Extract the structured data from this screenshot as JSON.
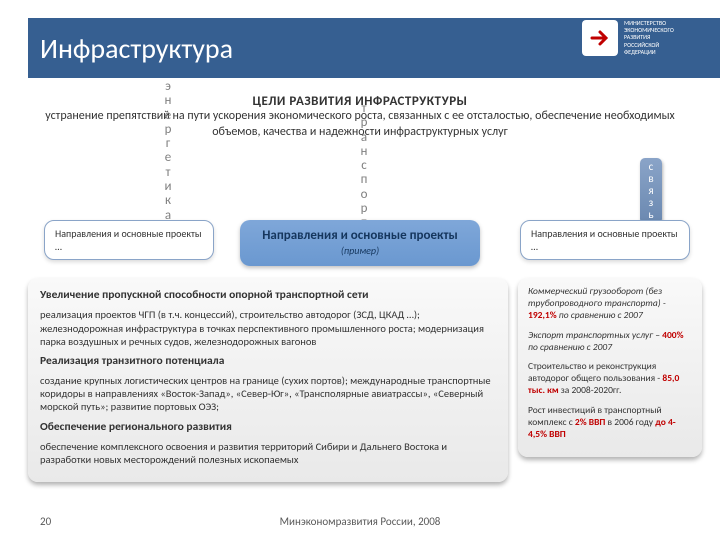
{
  "header": {
    "title": "Инфраструктура",
    "ministry_line1": "МИНИСТЕРСТВО",
    "ministry_line2": "ЭКОНОМИЧЕСКОГО",
    "ministry_line3": "РАЗВИТИЯ",
    "ministry_line4": "РОССИЙСКОЙ",
    "ministry_line5": "ФЕДЕРАЦИИ"
  },
  "goals": {
    "title": "ЦЕЛИ РАЗВИТИЯ ИНФРАСТРУКТУРЫ",
    "body": "устранение препятствий на пути ускорения экономического роста, связанных с ее отсталостью, обеспечение необходимых объемов, качества и надежности инфраструктурных услуг"
  },
  "pillars": {
    "energy": "энергетика",
    "transport": "транспорт",
    "telecom": "связь"
  },
  "callouts": {
    "left": "Направления и основные проекты …",
    "right": "Направления и основные проекты …",
    "center_main": "Направления и основные ",
    "center_sub": "проекты ",
    "center_note": "(пример)"
  },
  "main": {
    "h1": "Увеличение пропускной способности опорной транспортной сети",
    "p1": "реализация проектов ЧГП (в т.ч. концессий), строительство автодорог (ЗСД, ЦКАД …); железнодорожная инфраструктура в точках перспективного промышленного роста; модернизация парка воздушных и речных судов, железнодорожных вагонов",
    "h2": "Реализация транзитного потенциала",
    "p2": "создание крупных логистических центров на границе (сухих портов); международные транспортные коридоры в направлениях «Восток-Запад», «Север-Юг», «Трансполярные авиатрассы», «Северный морской путь»; развитие портовых ОЭЗ;",
    "h3": "Обеспечение регионального развития",
    "p3": "обеспечение комплексного освоения и развития территорий Сибири и Дальнего Востока и разработки новых месторождений полезных ископаемых"
  },
  "stats": {
    "s1_a": "Коммерческий грузооборот (без трубопроводного транспорта) - ",
    "s1_b": "192,1%",
    "s1_c": " по сравнению с 2007",
    "s2_a": "Экспорт транспортных услуг – ",
    "s2_b": "400%",
    "s2_c": " по сравнению с 2007",
    "s3_a": "Строительство и реконструкция автодорог общего пользования - ",
    "s3_b": "85,0 тыс. км",
    "s3_c": " за 2008-2020гг.",
    "s4_a": "Рост инвестиций в транспортный комплекс с ",
    "s4_b": "2% ВВП",
    "s4_c": " в 2006 году ",
    "s4_d": "до 4-4,5% ВВП"
  },
  "footer": {
    "page": "20",
    "org": "Минэкономразвития России, 2008"
  },
  "colors": {
    "header": "#365f91",
    "accent_red": "#c00000",
    "callout_blue": "#6a98d0"
  }
}
